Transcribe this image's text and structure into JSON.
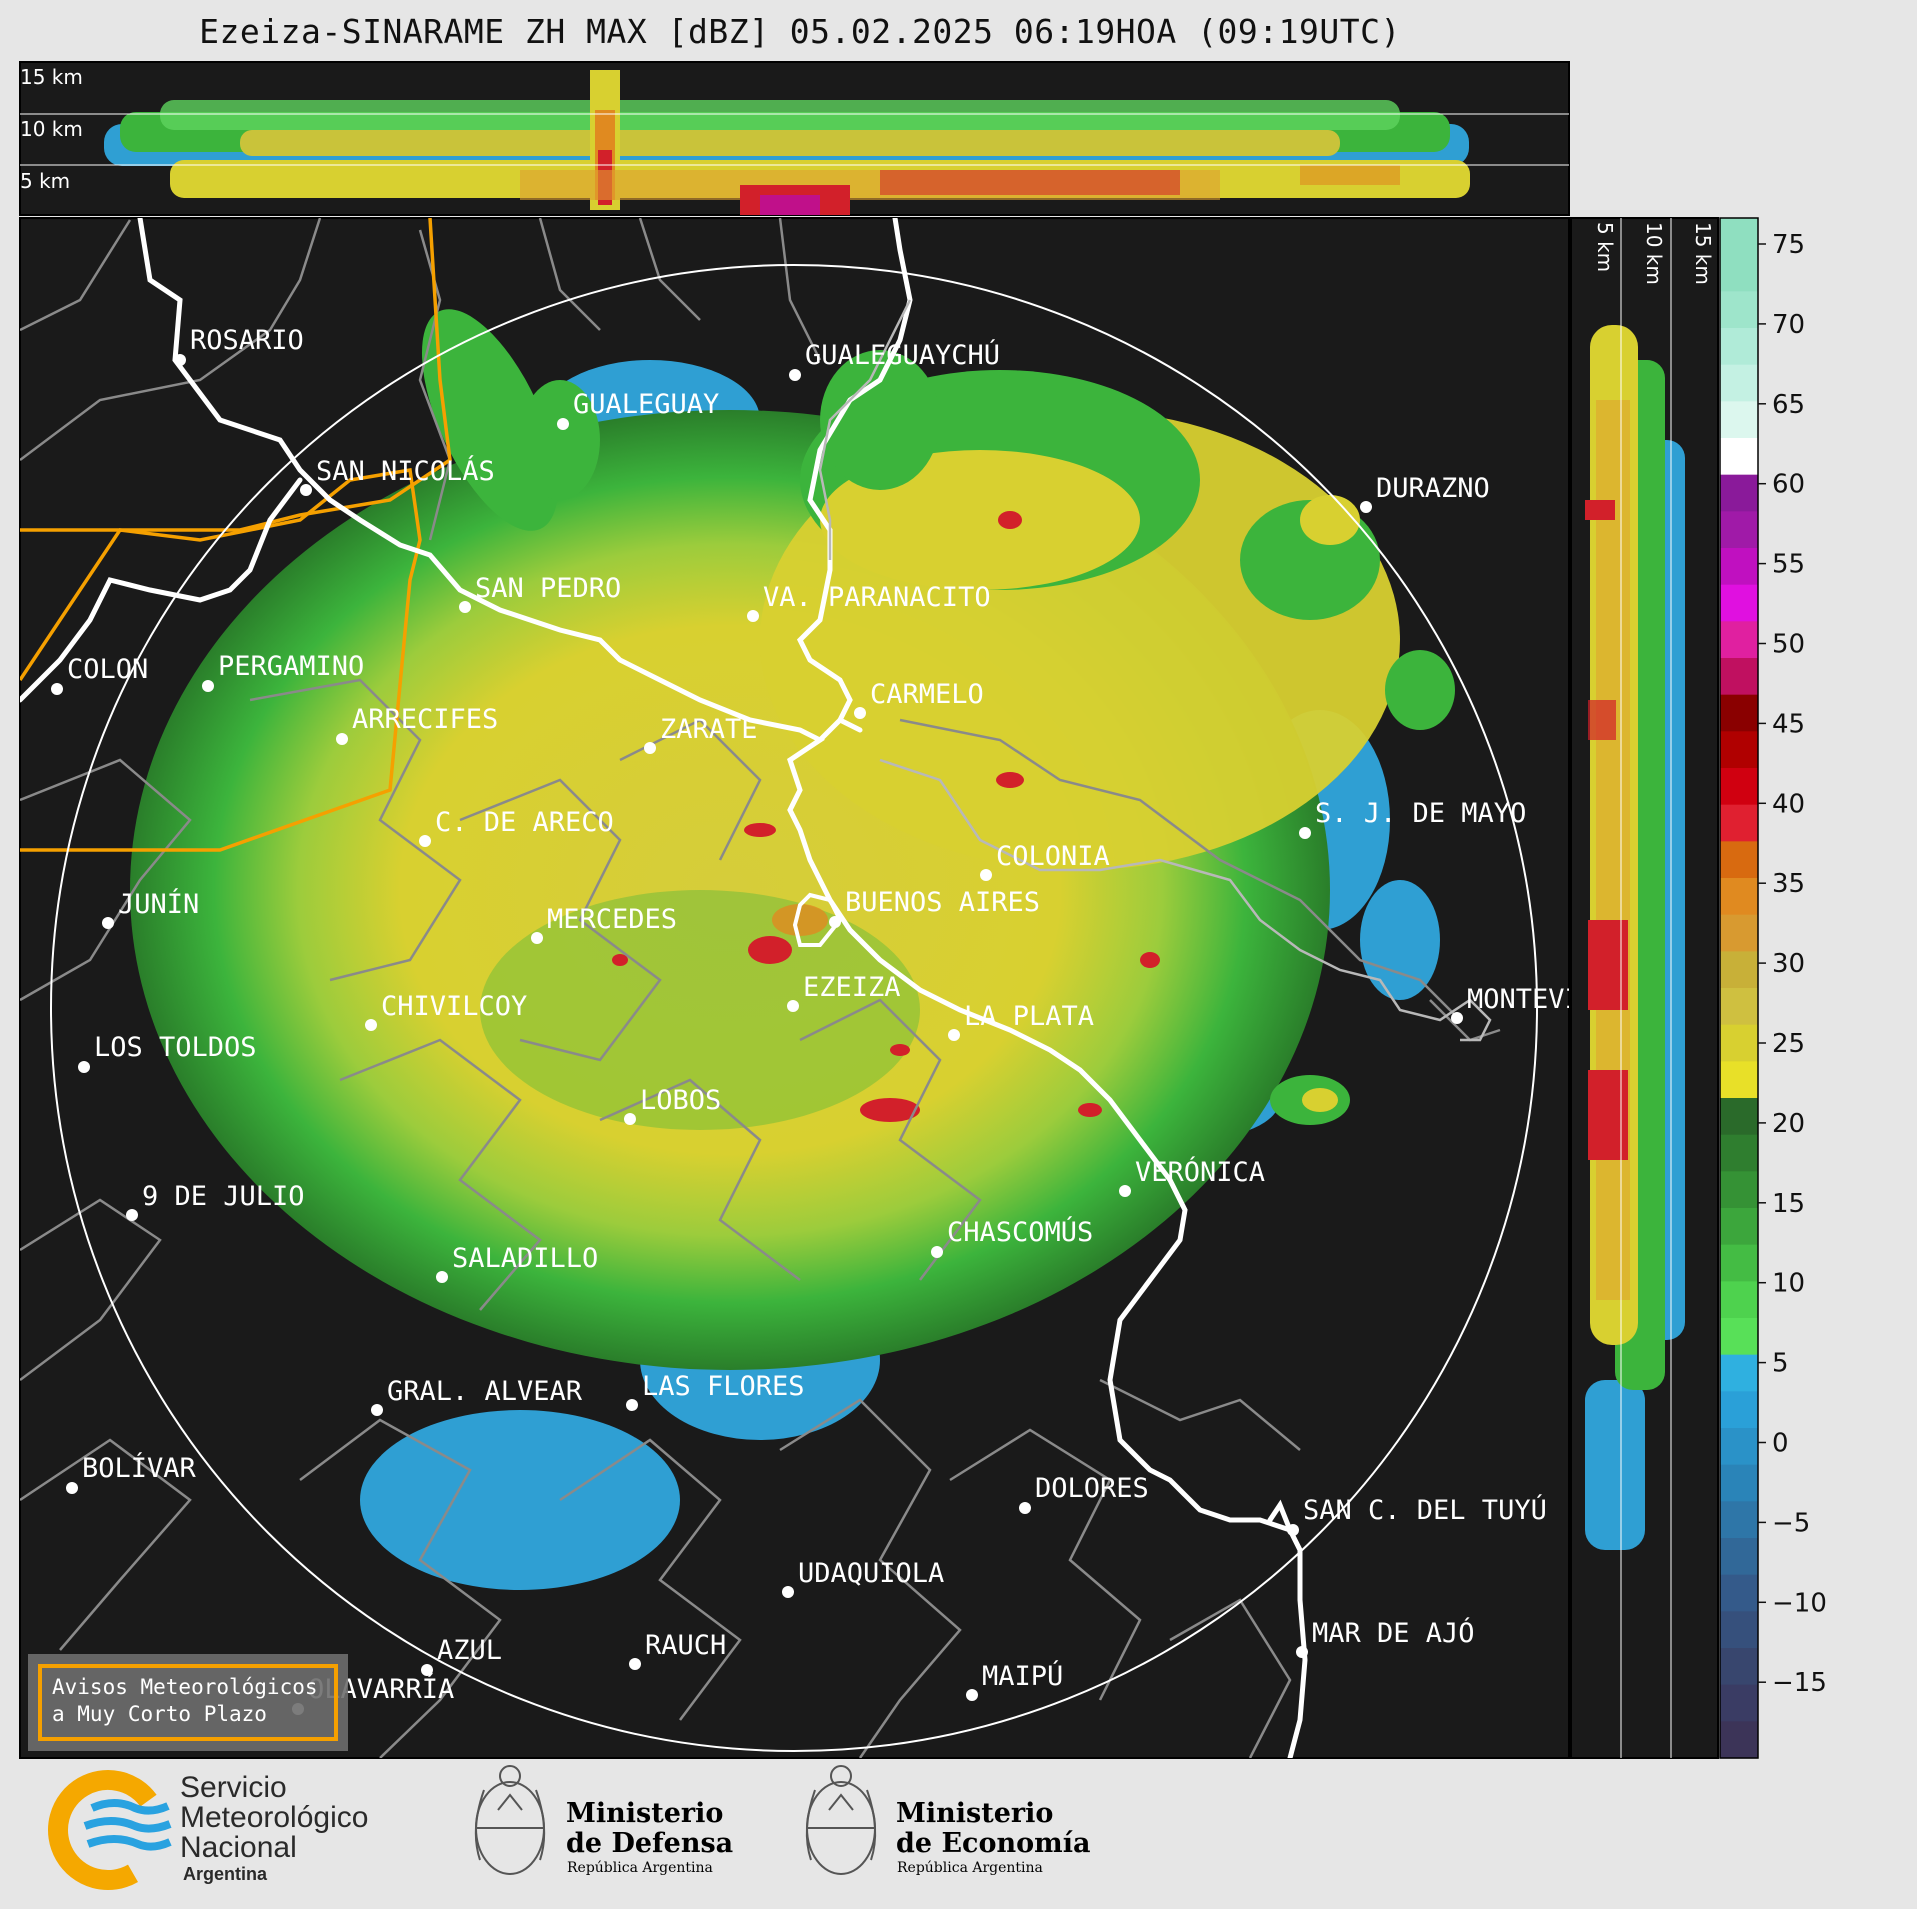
{
  "title": "Ezeiza-SINARAME ZH MAX [dBZ] 05.02.2025 06:19HOA (09:19UTC)",
  "top_panel": {
    "levels": [
      "15 km",
      "10 km",
      "5 km"
    ]
  },
  "side_panel": {
    "levels": [
      "5 km",
      "10 km",
      "15 km"
    ]
  },
  "colorbar": {
    "unit": "dBZ",
    "ticks": [
      "75",
      "70",
      "65",
      "60",
      "55",
      "50",
      "45",
      "40",
      "35",
      "30",
      "25",
      "20",
      "15",
      "10",
      "5",
      "0",
      "−5",
      "−10",
      "−15"
    ]
  },
  "cities": [
    {
      "name": "ROSARIO"
    },
    {
      "name": "GUALEGUAYCHÚ"
    },
    {
      "name": "GUALEGUAY"
    },
    {
      "name": "SAN NICOLÁS"
    },
    {
      "name": "DURAZNO"
    },
    {
      "name": "SAN PEDRO"
    },
    {
      "name": "VA. PARANACITO"
    },
    {
      "name": "COLON"
    },
    {
      "name": "PERGAMINO"
    },
    {
      "name": "CARMELO"
    },
    {
      "name": "ARRECIFES"
    },
    {
      "name": "ZARATE"
    },
    {
      "name": "C. DE ARECO"
    },
    {
      "name": "S. J. DE MAYO"
    },
    {
      "name": "COLONIA"
    },
    {
      "name": "JUNÍN"
    },
    {
      "name": "BUENOS AIRES"
    },
    {
      "name": "MERCEDES"
    },
    {
      "name": "EZEIZA"
    },
    {
      "name": "MONTEVIDEO"
    },
    {
      "name": "CHIVILCOY"
    },
    {
      "name": "LA PLATA"
    },
    {
      "name": "LOS TOLDOS"
    },
    {
      "name": "LOBOS"
    },
    {
      "name": "VERÓNICA"
    },
    {
      "name": "9 DE JULIO"
    },
    {
      "name": "CHASCOMÚS"
    },
    {
      "name": "SALADILLO"
    },
    {
      "name": "GRAL. ALVEAR"
    },
    {
      "name": "LAS FLORES"
    },
    {
      "name": "BOLÍVAR"
    },
    {
      "name": "DOLORES"
    },
    {
      "name": "SAN C. DEL TUYÚ"
    },
    {
      "name": "UDAQUIOLA"
    },
    {
      "name": "MAR DE AJÓ"
    },
    {
      "name": "AZUL"
    },
    {
      "name": "RAUCH"
    },
    {
      "name": "OLAVARRÍA"
    },
    {
      "name": "MAIPÚ"
    }
  ],
  "avisos": {
    "line1": "Avisos Meteorológicos",
    "line2": "a Muy Corto Plazo"
  },
  "logos": {
    "smn": {
      "line1": "Servicio",
      "line2": "Meteorológico",
      "line3": "Nacional",
      "country": "Argentina"
    },
    "defensa": {
      "line1": "Ministerio",
      "line2": "de Defensa",
      "sub": "República Argentina"
    },
    "economia": {
      "line1": "Ministerio",
      "line2": "de Economía",
      "sub": "República Argentina"
    }
  },
  "colors": {
    "map_background": "#1a1a1a",
    "reflectivity_yellow": "#d8d030",
    "reflectivity_green": "#3cb43c",
    "reflectivity_blue": "#2f9fd3",
    "reflectivity_red": "#d2202a",
    "border_orange": "#f5a000"
  }
}
